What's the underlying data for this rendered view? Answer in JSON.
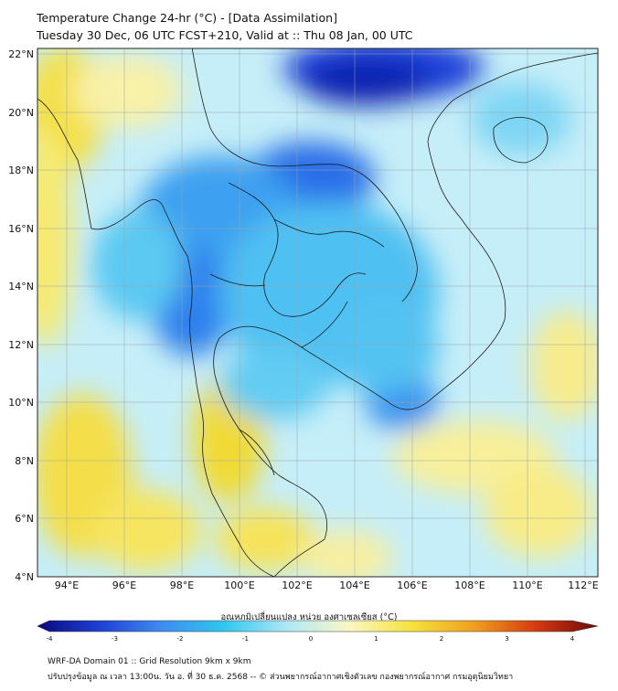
{
  "header": {
    "title": "Temperature Change 24-hr (°C) - [Data Assimilation]",
    "subtitle": "Tuesday 30 Dec, 06 UTC FCST+210, Valid at :: Thu 08 Jan, 00 UTC"
  },
  "map": {
    "lon_range": [
      93,
      112.5
    ],
    "lat_range": [
      4,
      22.2
    ],
    "lon_ticks": [
      "94°E",
      "96°E",
      "98°E",
      "100°E",
      "102°E",
      "104°E",
      "106°E",
      "108°E",
      "110°E",
      "112°E"
    ],
    "lat_ticks": [
      "22°N",
      "20°N",
      "18°N",
      "16°N",
      "14°N",
      "12°N",
      "10°N",
      "8°N",
      "6°N",
      "4°N"
    ],
    "field": "24-hr temperature change",
    "gridlines": true,
    "overlay": "coastlines and administrative borders"
  },
  "colorbar": {
    "title": "อุณหภูมิเปลี่ยนแปลง หน่วย องศาเซลเซียส (°C)",
    "min": -4,
    "max": 4,
    "tick_labels": [
      "-4",
      "-3",
      "-2",
      "-1",
      "0",
      "1",
      "2",
      "3",
      "4"
    ],
    "colors": [
      "#0a0a7a",
      "#1f3fd6",
      "#3f8cf0",
      "#2ec8ef",
      "#aee8f6",
      "#fbf7c4",
      "#f6e23e",
      "#f0a020",
      "#d63a10",
      "#6a0a0a"
    ]
  },
  "footer": {
    "line1": "WRF-DA Domain 01 :: Grid Resolution 9km x 9km",
    "line2": "ปรับปรุงข้อมูล ณ เวลา 13:00น. วัน อ. ที่ 30 ธ.ค. 2568 -- © ส่วนพยากรณ์อากาศเชิงตัวเลข กองพยากรณ์อากาศ กรมอุตุนิยมวิทยา"
  }
}
